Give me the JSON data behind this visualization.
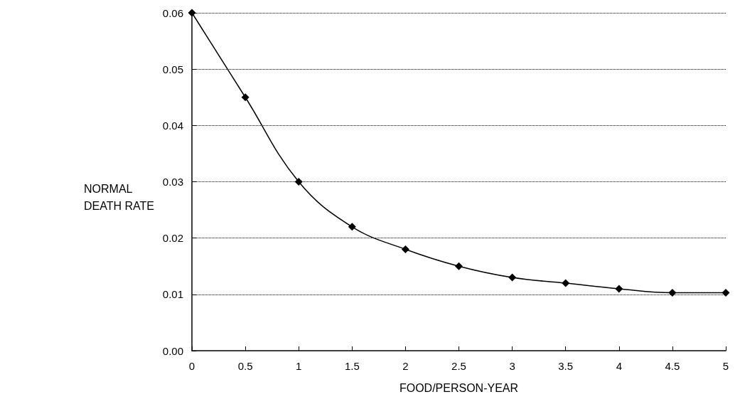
{
  "chart_data": {
    "type": "line",
    "xlabel": "FOOD/PERSON-YEAR",
    "ylabel": "NORMAL DEATH RATE",
    "x": [
      0,
      0.5,
      1,
      1.5,
      2,
      2.5,
      3,
      3.5,
      4,
      4.5,
      5
    ],
    "series": [
      {
        "color": "#000000",
        "values": [
          0.06,
          0.045,
          0.03,
          0.022,
          0.018,
          0.015,
          0.013,
          0.012,
          0.011,
          0.0103,
          0.0103
        ]
      }
    ],
    "xlim": [
      0,
      5
    ],
    "xticks": [
      0,
      0.5,
      1,
      1.5,
      2,
      2.5,
      3,
      3.5,
      4,
      4.5,
      5
    ],
    "ylim": [
      0,
      0.06
    ],
    "yticks": [
      {
        "value": 0,
        "label": "0.00"
      },
      {
        "value": 0.01,
        "label": "0.01"
      },
      {
        "value": 0.02,
        "label": "0.02"
      },
      {
        "value": 0.03,
        "label": "0.03"
      },
      {
        "value": 0.04,
        "label": "0.04"
      },
      {
        "value": 0.05,
        "label": "0.05"
      },
      {
        "value": 0.06,
        "label": "0.06"
      }
    ],
    "grid": "y",
    "marker": "diamond",
    "line_style": "solid"
  }
}
